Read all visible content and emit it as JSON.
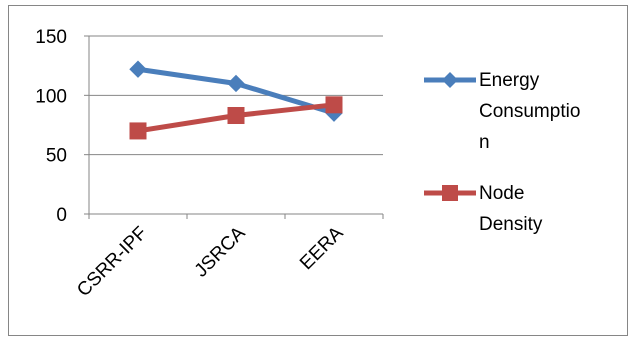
{
  "chart_data": {
    "type": "line",
    "categories": [
      "CSRR-IPF",
      "JSRCA",
      "EERA"
    ],
    "series": [
      {
        "name": "Energy Consumption",
        "legend_lines": [
          "Energy",
          "Consumptio",
          "n"
        ],
        "values": [
          122,
          110,
          85
        ],
        "color": "#4a7ebb",
        "marker": "diamond"
      },
      {
        "name": "Node Density",
        "legend_lines": [
          "Node",
          "Density"
        ],
        "values": [
          70,
          83,
          92
        ],
        "color": "#be4b48",
        "marker": "square"
      }
    ],
    "y_ticks": [
      "0",
      "50",
      "100",
      "150"
    ],
    "ylim": [
      0,
      150
    ],
    "grid": true,
    "legend_position": "right"
  }
}
